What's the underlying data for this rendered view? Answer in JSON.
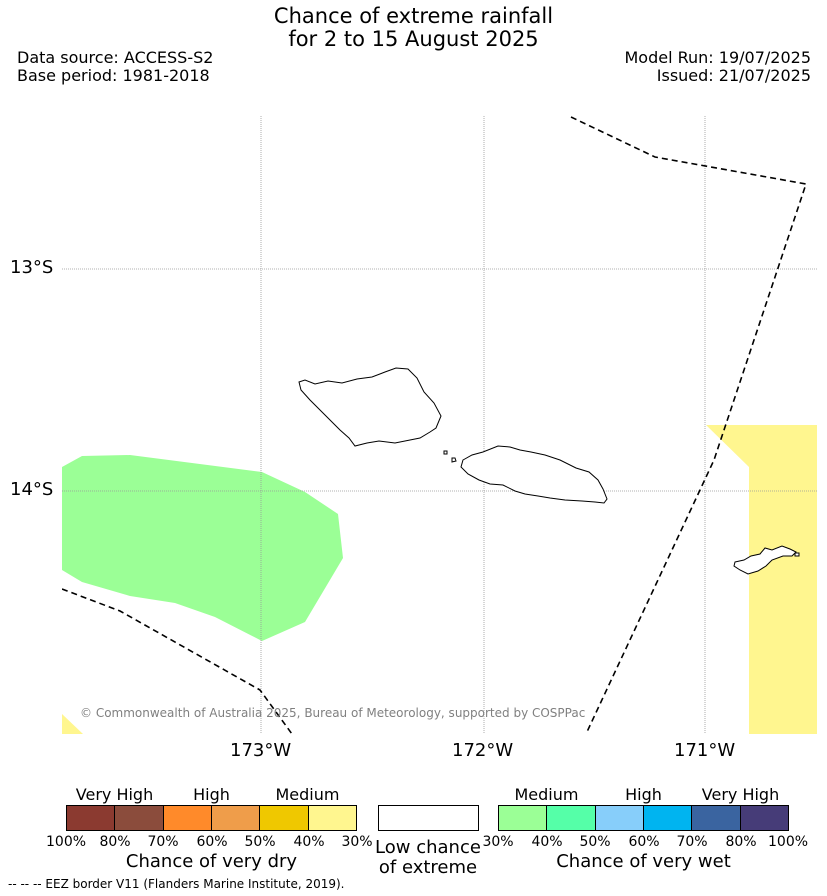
{
  "header": {
    "title_line1": "Chance of extreme rainfall",
    "title_line2": "for 2 to 15 August 2025",
    "data_source": "Data source: ACCESS-S2",
    "base_period": "Base period: 1981-2018",
    "model_run": "Model Run: 19/07/2025",
    "issued": "Issued: 21/07/2025"
  },
  "map": {
    "lat_labels": [
      "13°S",
      "14°S"
    ],
    "lon_labels": [
      "173°W",
      "172°W",
      "171°W"
    ],
    "copyright": "© Commonwealth of Australia 2025, Bureau of Meteorology, supported by COSPPac",
    "regions": [
      {
        "category": "Medium",
        "type": "wet",
        "chance": "30-40%",
        "color": "#9bff96"
      },
      {
        "category": "Medium",
        "type": "dry",
        "chance": "30-40%",
        "color": "#fff68f"
      }
    ]
  },
  "legend": {
    "dry": {
      "title": "Chance of very dry",
      "categories": [
        "Very High",
        "High",
        "Medium"
      ],
      "ticks": [
        "100%",
        "80%",
        "70%",
        "60%",
        "50%",
        "40%",
        "30%"
      ],
      "colors": [
        "#8b3a30",
        "#8b4c3c",
        "#ff8a2a",
        "#ef9d4a",
        "#efc800",
        "#fff68f"
      ]
    },
    "neutral": {
      "title_line1": "Low chance",
      "title_line2": "of extreme",
      "color": "#ffffff"
    },
    "wet": {
      "title": "Chance of very wet",
      "categories": [
        "Medium",
        "High",
        "Very High"
      ],
      "ticks": [
        "30%",
        "40%",
        "50%",
        "60%",
        "70%",
        "80%",
        "100%"
      ],
      "colors": [
        "#9bff96",
        "#55ffa8",
        "#87cefa",
        "#00b4f0",
        "#3a64a0",
        "#463c78"
      ]
    }
  },
  "footer": {
    "eez_text": "--  --  -- EEZ border V11 (Flanders Marine Institute, 2019)."
  }
}
